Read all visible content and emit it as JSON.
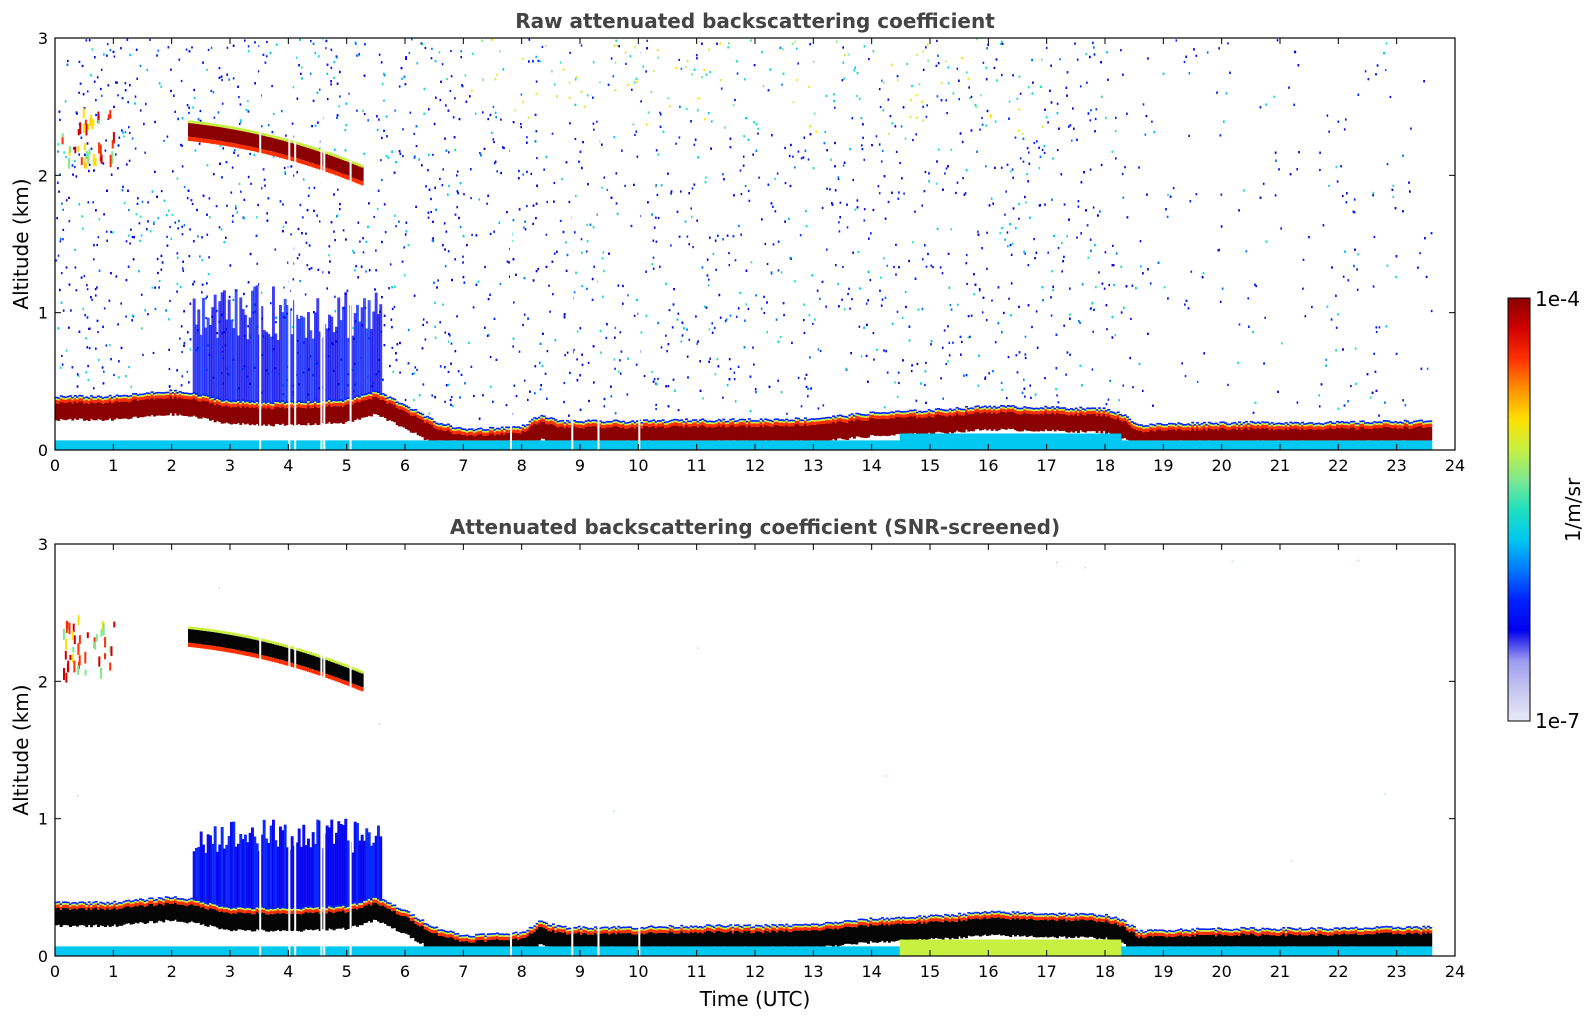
{
  "chart_data": [
    {
      "type": "heatmap",
      "title": "Raw attenuated backscattering coefficient",
      "xlabel": "",
      "ylabel": "Altitude (km)",
      "xlim": [
        0,
        24
      ],
      "ylim": [
        0,
        3
      ],
      "xticks": [
        0,
        1,
        2,
        3,
        4,
        5,
        6,
        7,
        8,
        9,
        10,
        11,
        12,
        13,
        14,
        15,
        16,
        17,
        18,
        19,
        20,
        21,
        22,
        23,
        24
      ],
      "yticks": [
        0,
        1,
        2,
        3
      ],
      "data_end_time": 23.6,
      "boundary_layer_top_km": [
        [
          0,
          0.38
        ],
        [
          1,
          0.38
        ],
        [
          2,
          0.42
        ],
        [
          2.4,
          0.4
        ],
        [
          3,
          0.35
        ],
        [
          4,
          0.34
        ],
        [
          5,
          0.36
        ],
        [
          5.5,
          0.42
        ],
        [
          6,
          0.32
        ],
        [
          6.5,
          0.2
        ],
        [
          7,
          0.14
        ],
        [
          7.5,
          0.15
        ],
        [
          8,
          0.16
        ],
        [
          8.3,
          0.24
        ],
        [
          8.7,
          0.2
        ],
        [
          10,
          0.2
        ],
        [
          11,
          0.21
        ],
        [
          12,
          0.21
        ],
        [
          13,
          0.22
        ],
        [
          14,
          0.26
        ],
        [
          15,
          0.28
        ],
        [
          16,
          0.31
        ],
        [
          17,
          0.3
        ],
        [
          18,
          0.29
        ],
        [
          18.3,
          0.25
        ],
        [
          18.6,
          0.17
        ],
        [
          19,
          0.18
        ],
        [
          20,
          0.19
        ],
        [
          21,
          0.19
        ],
        [
          22,
          0.19
        ],
        [
          23,
          0.2
        ],
        [
          23.6,
          0.2
        ]
      ],
      "elevated_cloud_layer": {
        "start": 2.3,
        "end": 5.3,
        "top_km_start": 2.38,
        "top_km_end": 2.05
      },
      "colorscale": {
        "min": "1e-7",
        "max": "1e-4",
        "unit": "1/m/sr"
      }
    },
    {
      "type": "heatmap",
      "title": "Attenuated backscattering coefficient (SNR-screened)",
      "xlabel": "Time (UTC)",
      "ylabel": "Altitude (km)",
      "xlim": [
        0,
        24
      ],
      "ylim": [
        0,
        3
      ],
      "xticks": [
        0,
        1,
        2,
        3,
        4,
        5,
        6,
        7,
        8,
        9,
        10,
        11,
        12,
        13,
        14,
        15,
        16,
        17,
        18,
        19,
        20,
        21,
        22,
        23,
        24
      ],
      "yticks": [
        0,
        1,
        2,
        3
      ],
      "data_end_time": 23.6,
      "colorscale": {
        "min": "1e-7",
        "max": "1e-4",
        "unit": "1/m/sr"
      }
    }
  ],
  "colorbar": {
    "max_label": "1e-4",
    "min_label": "1e-7",
    "unit_label": "1/m/sr",
    "colors": [
      "#e9e9f9",
      "#c7c7f2",
      "#9b9bf0",
      "#0000ee",
      "#0022ff",
      "#0077ff",
      "#00c8f0",
      "#20e0c0",
      "#7fe890",
      "#c8f040",
      "#ffe000",
      "#ff9000",
      "#ff3000",
      "#d00000",
      "#8b0000"
    ]
  }
}
